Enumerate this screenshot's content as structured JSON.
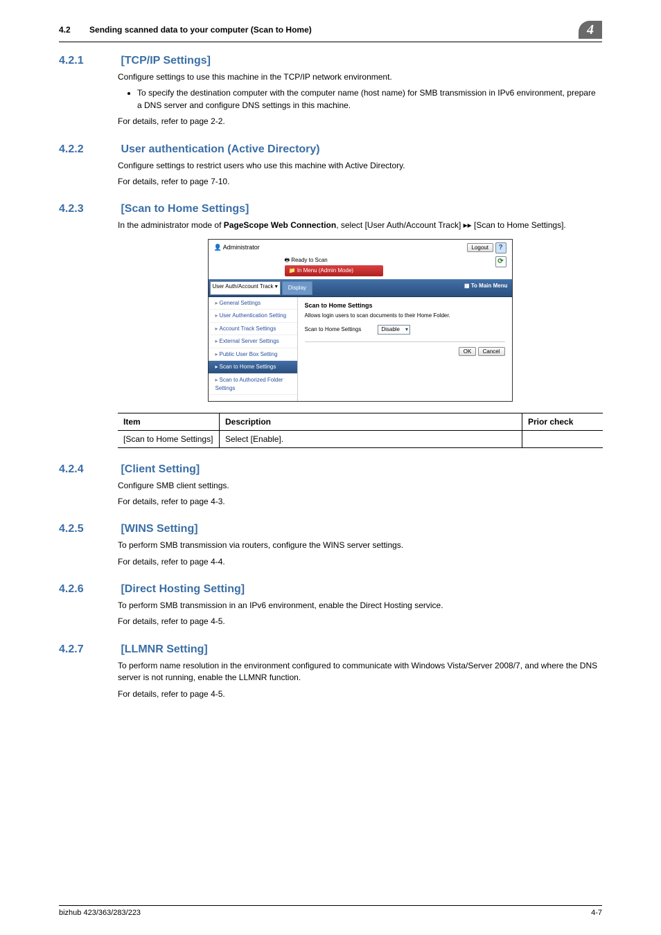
{
  "header": {
    "section_number": "4.2",
    "section_title": "Sending scanned data to your computer (Scan to Home)",
    "chapter_badge": "4"
  },
  "sections": [
    {
      "num": "4.2.1",
      "title": "[TCP/IP Settings]",
      "paras": [
        "Configure settings to use this machine in the TCP/IP network environment."
      ],
      "bullets": [
        "To specify the destination computer with the computer name (host name) for SMB transmission in IPv6 environment, prepare a DNS server and configure DNS settings in this machine."
      ],
      "after": [
        "For details, refer to page 2-2."
      ]
    },
    {
      "num": "4.2.2",
      "title": "User authentication (Active Directory)",
      "paras": [
        "Configure settings to restrict users who use this machine with Active Directory.",
        "For details, refer to page 7-10."
      ]
    },
    {
      "num": "4.2.3",
      "title": "[Scan to Home Settings]",
      "intro_pre": "In the administrator mode of ",
      "intro_bold": "PageScope Web Connection",
      "intro_post": ", select [User Auth/Account Track] ▸▸ [Scan to Home Settings].",
      "screenshot": {
        "admin_label": "Administrator",
        "logout": "Logout",
        "ready": "Ready to Scan",
        "redbar": "In Menu (Admin Mode)",
        "dropdown": "User Auth/Account Track",
        "display": "Display",
        "to_main": "To Main Menu",
        "sidebar": [
          "General Settings",
          "User Authentication Setting",
          "Account Track Settings",
          "External Server Settings",
          "Public User Box Setting",
          "Scan to Home Settings",
          "Scan to Authorized Folder Settings"
        ],
        "sidebar_selected_index": 5,
        "main_title": "Scan to Home Settings",
        "main_sub": "Allows login users to scan documents to their Home Folder.",
        "opt_label": "Scan to Home Settings",
        "opt_value": "Disable",
        "ok": "OK",
        "cancel": "Cancel"
      },
      "table": {
        "headers": [
          "Item",
          "Description",
          "Prior check"
        ],
        "rows": [
          [
            "[Scan to Home Settings]",
            "Select [Enable].",
            ""
          ]
        ]
      }
    },
    {
      "num": "4.2.4",
      "title": "[Client Setting]",
      "paras": [
        "Configure SMB client settings.",
        "For details, refer to page 4-3."
      ]
    },
    {
      "num": "4.2.5",
      "title": "[WINS Setting]",
      "paras": [
        "To perform SMB transmission via routers, configure the WINS server settings.",
        "For details, refer to page 4-4."
      ]
    },
    {
      "num": "4.2.6",
      "title": "[Direct Hosting Setting]",
      "paras": [
        "To perform SMB transmission in an IPv6 environment, enable the Direct Hosting service.",
        "For details, refer to page 4-5."
      ]
    },
    {
      "num": "4.2.7",
      "title": "[LLMNR Setting]",
      "paras": [
        "To perform name resolution in the environment configured to communicate with Windows Vista/Server 2008/7, and where the DNS server is not running, enable the LLMNR function.",
        "For details, refer to page 4-5."
      ]
    }
  ],
  "footer": {
    "left": "bizhub 423/363/283/223",
    "right": "4-7"
  }
}
